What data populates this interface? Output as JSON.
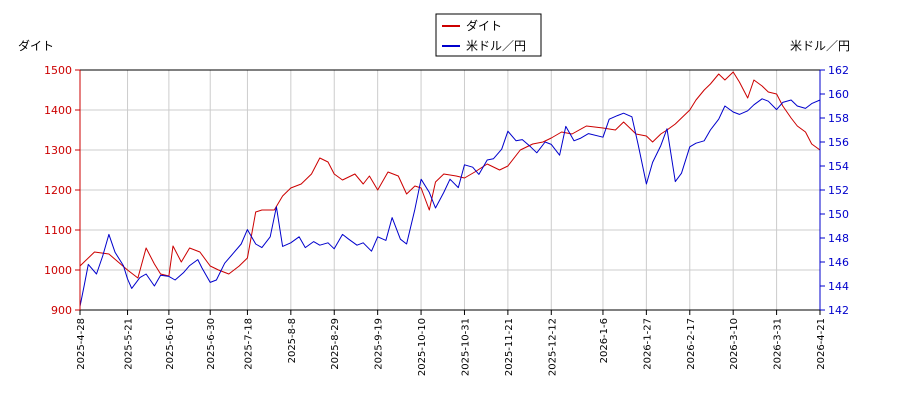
{
  "chart_data": {
    "type": "line",
    "left_axis_label": "ダイト",
    "right_axis_label": "米ドル／円",
    "legend": {
      "placement": "top-center"
    },
    "grid": true,
    "x_dates": [
      "2025-4-28",
      "2025-5-21",
      "2025-6-10",
      "2025-6-30",
      "2025-7-18",
      "2025-8-8",
      "2025-8-29",
      "2025-9-19",
      "2025-10-10",
      "2025-10-31",
      "2025-11-21",
      "2025-12-12",
      "2026-1-6",
      "2026-1-27",
      "2026-2-17",
      "2026-3-10",
      "2026-3-31",
      "2026-4-21"
    ],
    "y_left": {
      "min": 900,
      "max": 1500,
      "ticks": [
        "900",
        "1000",
        "1100",
        "1200",
        "1300",
        "1400",
        "1500"
      ],
      "color": "#cc0000"
    },
    "y_right": {
      "min": 142,
      "max": 162,
      "ticks": [
        "142",
        "144",
        "146",
        "148",
        "150",
        "152",
        "154",
        "156",
        "158",
        "160",
        "162"
      ],
      "color": "#0000cc"
    },
    "series": [
      {
        "name": "ダイト",
        "axis": "left",
        "color": "#cc0000",
        "points": [
          [
            "2025-4-28",
            1010
          ],
          [
            "2025-5-5",
            1045
          ],
          [
            "2025-5-12",
            1040
          ],
          [
            "2025-5-21",
            1000
          ],
          [
            "2025-5-26",
            980
          ],
          [
            "2025-5-30",
            1055
          ],
          [
            "2025-6-3",
            1015
          ],
          [
            "2025-6-6",
            990
          ],
          [
            "2025-6-10",
            985
          ],
          [
            "2025-6-12",
            1060
          ],
          [
            "2025-6-16",
            1020
          ],
          [
            "2025-6-20",
            1055
          ],
          [
            "2025-6-25",
            1045
          ],
          [
            "2025-6-30",
            1010
          ],
          [
            "2025-7-4",
            1000
          ],
          [
            "2025-7-9",
            990
          ],
          [
            "2025-7-14",
            1010
          ],
          [
            "2025-7-18",
            1030
          ],
          [
            "2025-7-22",
            1145
          ],
          [
            "2025-7-25",
            1150
          ],
          [
            "2025-7-31",
            1150
          ],
          [
            "2025-8-4",
            1185
          ],
          [
            "2025-8-8",
            1205
          ],
          [
            "2025-8-13",
            1215
          ],
          [
            "2025-8-18",
            1240
          ],
          [
            "2025-8-22",
            1280
          ],
          [
            "2025-8-26",
            1270
          ],
          [
            "2025-8-29",
            1240
          ],
          [
            "2025-9-2",
            1225
          ],
          [
            "2025-9-8",
            1240
          ],
          [
            "2025-9-12",
            1215
          ],
          [
            "2025-9-15",
            1235
          ],
          [
            "2025-9-19",
            1200
          ],
          [
            "2025-9-24",
            1245
          ],
          [
            "2025-9-29",
            1235
          ],
          [
            "2025-10-3",
            1190
          ],
          [
            "2025-10-7",
            1210
          ],
          [
            "2025-10-10",
            1205
          ],
          [
            "2025-10-14",
            1150
          ],
          [
            "2025-10-17",
            1220
          ],
          [
            "2025-10-21",
            1240
          ],
          [
            "2025-10-27",
            1235
          ],
          [
            "2025-10-31",
            1230
          ],
          [
            "2025-11-5",
            1245
          ],
          [
            "2025-11-11",
            1265
          ],
          [
            "2025-11-17",
            1250
          ],
          [
            "2025-11-21",
            1260
          ],
          [
            "2025-11-27",
            1300
          ],
          [
            "2025-12-3",
            1315
          ],
          [
            "2025-12-8",
            1320
          ],
          [
            "2025-12-12",
            1330
          ],
          [
            "2025-12-17",
            1345
          ],
          [
            "2025-12-22",
            1340
          ],
          [
            "2025-12-29",
            1360
          ],
          [
            "2026-1-6",
            1355
          ],
          [
            "2026-1-12",
            1350
          ],
          [
            "2026-1-16",
            1370
          ],
          [
            "2026-1-22",
            1340
          ],
          [
            "2026-1-27",
            1335
          ],
          [
            "2026-1-30",
            1320
          ],
          [
            "2026-2-3",
            1340
          ],
          [
            "2026-2-6",
            1350
          ],
          [
            "2026-2-10",
            1365
          ],
          [
            "2026-2-13",
            1380
          ],
          [
            "2026-2-17",
            1400
          ],
          [
            "2026-2-20",
            1425
          ],
          [
            "2026-2-24",
            1450
          ],
          [
            "2026-2-27",
            1465
          ],
          [
            "2026-3-3",
            1490
          ],
          [
            "2026-3-6",
            1475
          ],
          [
            "2026-3-10",
            1495
          ],
          [
            "2026-3-13",
            1470
          ],
          [
            "2026-3-17",
            1430
          ],
          [
            "2026-3-20",
            1475
          ],
          [
            "2026-3-24",
            1460
          ],
          [
            "2026-3-27",
            1445
          ],
          [
            "2026-3-31",
            1440
          ],
          [
            "2026-4-3",
            1410
          ],
          [
            "2026-4-7",
            1380
          ],
          [
            "2026-4-10",
            1360
          ],
          [
            "2026-4-14",
            1345
          ],
          [
            "2026-4-17",
            1315
          ],
          [
            "2026-4-21",
            1300
          ]
        ]
      },
      {
        "name": "米ドル／円",
        "axis": "right",
        "color": "#0000cc",
        "points": [
          [
            "2025-4-28",
            142.3
          ],
          [
            "2025-4-30",
            144.0
          ],
          [
            "2025-5-2",
            145.8
          ],
          [
            "2025-5-6",
            145.0
          ],
          [
            "2025-5-9",
            146.5
          ],
          [
            "2025-5-12",
            148.3
          ],
          [
            "2025-5-15",
            146.8
          ],
          [
            "2025-5-19",
            145.7
          ],
          [
            "2025-5-21",
            144.6
          ],
          [
            "2025-5-23",
            143.8
          ],
          [
            "2025-5-27",
            144.7
          ],
          [
            "2025-5-30",
            145.0
          ],
          [
            "2025-6-3",
            144.0
          ],
          [
            "2025-6-6",
            144.9
          ],
          [
            "2025-6-10",
            144.8
          ],
          [
            "2025-6-13",
            144.5
          ],
          [
            "2025-6-17",
            145.1
          ],
          [
            "2025-6-20",
            145.7
          ],
          [
            "2025-6-24",
            146.2
          ],
          [
            "2025-6-26",
            145.5
          ],
          [
            "2025-6-30",
            144.3
          ],
          [
            "2025-7-3",
            144.5
          ],
          [
            "2025-7-7",
            145.9
          ],
          [
            "2025-7-11",
            146.7
          ],
          [
            "2025-7-15",
            147.5
          ],
          [
            "2025-7-18",
            148.7
          ],
          [
            "2025-7-22",
            147.5
          ],
          [
            "2025-7-25",
            147.2
          ],
          [
            "2025-7-29",
            148.1
          ],
          [
            "2025-8-1",
            150.6
          ],
          [
            "2025-8-4",
            147.3
          ],
          [
            "2025-8-8",
            147.6
          ],
          [
            "2025-8-12",
            148.1
          ],
          [
            "2025-8-15",
            147.2
          ],
          [
            "2025-8-19",
            147.7
          ],
          [
            "2025-8-22",
            147.4
          ],
          [
            "2025-8-26",
            147.6
          ],
          [
            "2025-8-29",
            147.1
          ],
          [
            "2025-9-2",
            148.3
          ],
          [
            "2025-9-5",
            147.9
          ],
          [
            "2025-9-9",
            147.4
          ],
          [
            "2025-9-12",
            147.6
          ],
          [
            "2025-9-16",
            146.9
          ],
          [
            "2025-9-19",
            148.1
          ],
          [
            "2025-9-23",
            147.8
          ],
          [
            "2025-9-26",
            149.7
          ],
          [
            "2025-9-30",
            147.9
          ],
          [
            "2025-10-3",
            147.5
          ],
          [
            "2025-10-7",
            150.4
          ],
          [
            "2025-10-10",
            152.9
          ],
          [
            "2025-10-14",
            151.8
          ],
          [
            "2025-10-17",
            150.5
          ],
          [
            "2025-10-21",
            151.8
          ],
          [
            "2025-10-24",
            152.9
          ],
          [
            "2025-10-28",
            152.2
          ],
          [
            "2025-10-31",
            154.1
          ],
          [
            "2025-11-4",
            153.9
          ],
          [
            "2025-11-7",
            153.3
          ],
          [
            "2025-11-11",
            154.5
          ],
          [
            "2025-11-14",
            154.6
          ],
          [
            "2025-11-18",
            155.4
          ],
          [
            "2025-11-21",
            156.9
          ],
          [
            "2025-11-25",
            156.1
          ],
          [
            "2025-11-28",
            156.2
          ],
          [
            "2025-12-2",
            155.6
          ],
          [
            "2025-12-5",
            155.1
          ],
          [
            "2025-12-9",
            156.0
          ],
          [
            "2025-12-12",
            155.8
          ],
          [
            "2025-12-16",
            154.9
          ],
          [
            "2025-12-19",
            157.3
          ],
          [
            "2025-12-23",
            156.1
          ],
          [
            "2025-12-26",
            156.3
          ],
          [
            "2025-12-30",
            156.7
          ],
          [
            "2026-1-6",
            156.4
          ],
          [
            "2026-1-9",
            157.9
          ],
          [
            "2026-1-13",
            158.2
          ],
          [
            "2026-1-16",
            158.4
          ],
          [
            "2026-1-20",
            158.1
          ],
          [
            "2026-1-23",
            155.8
          ],
          [
            "2026-1-27",
            152.5
          ],
          [
            "2026-1-30",
            154.3
          ],
          [
            "2026-2-3",
            155.7
          ],
          [
            "2026-2-6",
            157.1
          ],
          [
            "2026-2-10",
            152.7
          ],
          [
            "2026-2-13",
            153.4
          ],
          [
            "2026-2-17",
            155.6
          ],
          [
            "2026-2-20",
            155.9
          ],
          [
            "2026-2-24",
            156.1
          ],
          [
            "2026-2-27",
            157.0
          ],
          [
            "2026-3-3",
            157.9
          ],
          [
            "2026-3-6",
            159.0
          ],
          [
            "2026-3-10",
            158.5
          ],
          [
            "2026-3-13",
            158.3
          ],
          [
            "2026-3-17",
            158.6
          ],
          [
            "2026-3-20",
            159.1
          ],
          [
            "2026-3-24",
            159.6
          ],
          [
            "2026-3-27",
            159.4
          ],
          [
            "2026-3-31",
            158.7
          ],
          [
            "2026-4-3",
            159.3
          ],
          [
            "2026-4-7",
            159.5
          ],
          [
            "2026-4-10",
            159.0
          ],
          [
            "2026-4-14",
            158.8
          ],
          [
            "2026-4-17",
            159.2
          ],
          [
            "2026-4-21",
            159.5
          ]
        ]
      }
    ]
  }
}
